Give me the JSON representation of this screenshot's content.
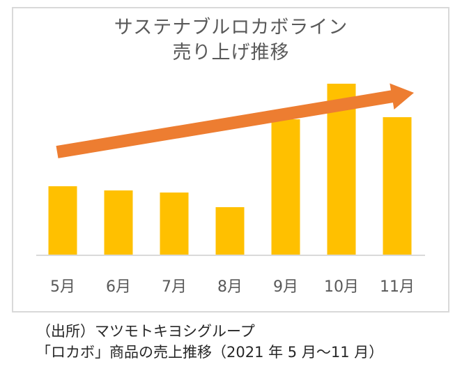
{
  "chart_data": {
    "type": "bar",
    "title_lines": [
      "サステナブルロカボライン",
      "売り上げ推移"
    ],
    "categories": [
      "5月",
      "6月",
      "7月",
      "8月",
      "9月",
      "10月",
      "11月"
    ],
    "values": [
      33,
      31,
      30,
      23,
      65,
      82,
      66
    ],
    "ylim": [
      0,
      100
    ],
    "xlabel": "",
    "ylabel": "",
    "grid": false,
    "bar_color": "#FFC000",
    "arrow_color": "#ED7D31",
    "axis_color": "#D9D9D9",
    "text_color": "#595959"
  },
  "source": {
    "line1": "（出所）マツモトキヨシグループ",
    "line2": "「ロカボ」商品の売上推移（2021 年 5 月〜11 月）"
  }
}
